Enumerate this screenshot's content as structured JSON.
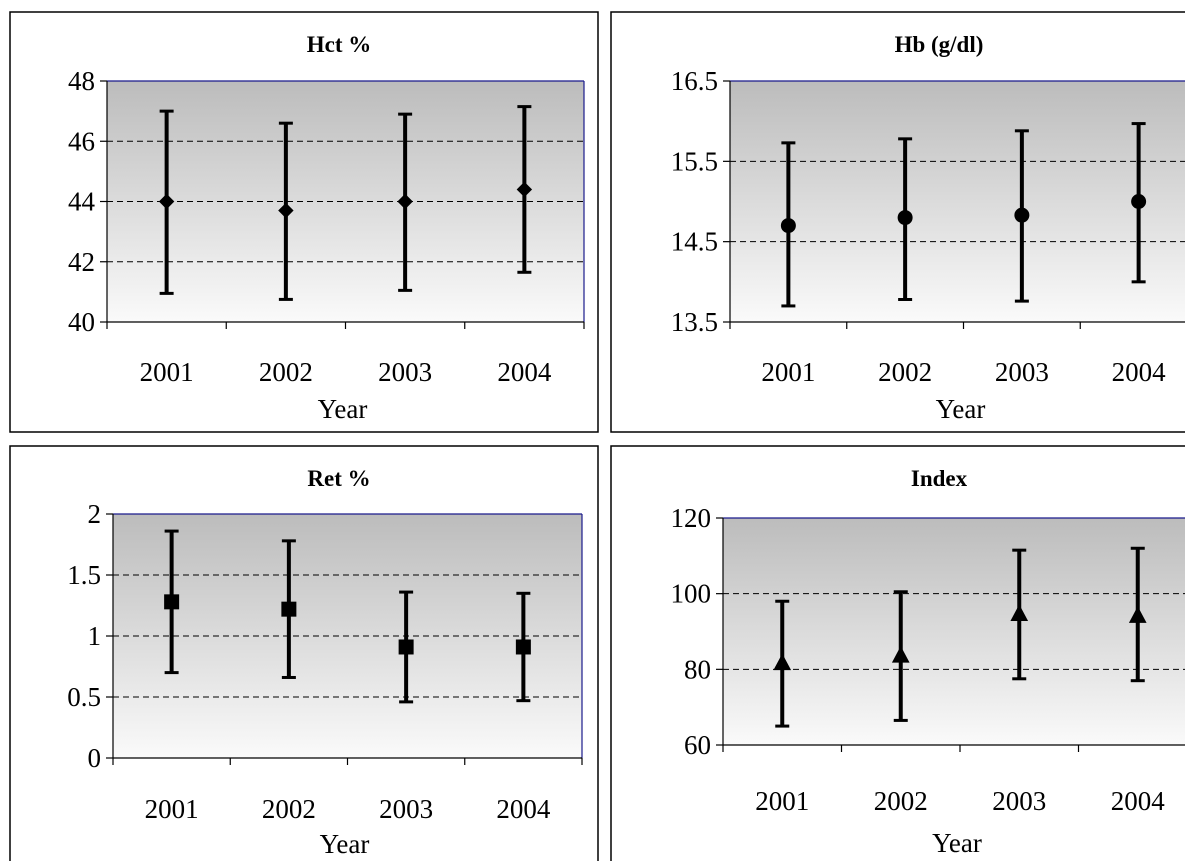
{
  "chart_data": [
    {
      "type": "scatter",
      "title": "Hct %",
      "xlabel": "Year",
      "categories": [
        "2001",
        "2002",
        "2003",
        "2004"
      ],
      "values": [
        44.0,
        43.7,
        44.0,
        44.4
      ],
      "lower": [
        40.95,
        40.75,
        41.05,
        41.65
      ],
      "upper": [
        47.0,
        46.6,
        46.9,
        47.15
      ],
      "ylim": [
        40,
        48
      ],
      "yticks": [
        40,
        42,
        44,
        46,
        48
      ],
      "ytick_labels": [
        "40",
        "42",
        "44",
        "46",
        "48"
      ],
      "marker": "diamond",
      "grid": true
    },
    {
      "type": "scatter",
      "title": "Hb (g/dl)",
      "xlabel": "Year",
      "categories": [
        "2001",
        "2002",
        "2003",
        "2004"
      ],
      "values": [
        14.7,
        14.8,
        14.83,
        15.0
      ],
      "lower": [
        13.7,
        13.78,
        13.76,
        14.0
      ],
      "upper": [
        15.73,
        15.78,
        15.88,
        15.97
      ],
      "ylim": [
        13.5,
        16.5
      ],
      "yticks": [
        13.5,
        14.5,
        15.5,
        16.5
      ],
      "ytick_labels": [
        "13.5",
        "14.5",
        "15.5",
        "16.5"
      ],
      "marker": "circle",
      "grid": true
    },
    {
      "type": "scatter",
      "title": "Ret %",
      "xlabel": "Year",
      "categories": [
        "2001",
        "2002",
        "2003",
        "2004"
      ],
      "values": [
        1.28,
        1.22,
        0.91,
        0.91
      ],
      "lower": [
        0.7,
        0.66,
        0.46,
        0.47
      ],
      "upper": [
        1.86,
        1.78,
        1.36,
        1.35
      ],
      "ylim": [
        0,
        2
      ],
      "yticks": [
        0,
        0.5,
        1,
        1.5,
        2
      ],
      "ytick_labels": [
        "0",
        "0.5",
        "1",
        "1.5",
        "2"
      ],
      "marker": "square",
      "grid": true
    },
    {
      "type": "scatter",
      "title": "Index",
      "xlabel": "Year",
      "categories": [
        "2001",
        "2002",
        "2003",
        "2004"
      ],
      "values": [
        81.5,
        83.5,
        94.5,
        94.0
      ],
      "lower": [
        65.0,
        66.5,
        77.5,
        77.0
      ],
      "upper": [
        98.0,
        100.5,
        111.5,
        112.0
      ],
      "ylim": [
        60,
        120
      ],
      "yticks": [
        60,
        80,
        100,
        120
      ],
      "ytick_labels": [
        "60",
        "80",
        "100",
        "120"
      ],
      "marker": "triangle",
      "grid": true
    }
  ]
}
